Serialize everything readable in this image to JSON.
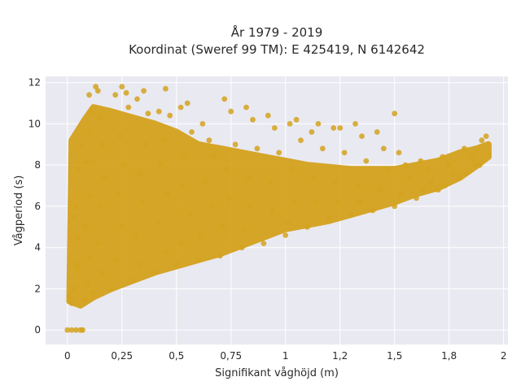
{
  "chart_data": {
    "type": "scatter",
    "title_line1": "År 1979 - 2019",
    "title_line2": "Koordinat (Sweref 99 TM): E 425419, N 6142642",
    "xlabel": "Signifikant våghöjd (m)",
    "ylabel": "Vågperiod (s)",
    "xlim": [
      -0.1,
      2.02
    ],
    "ylim": [
      -0.7,
      12.3
    ],
    "x_ticks": [
      {
        "value": 0,
        "label": "0"
      },
      {
        "value": 0.25,
        "label": "0,25"
      },
      {
        "value": 0.5,
        "label": "0,5"
      },
      {
        "value": 0.75,
        "label": "0,75"
      },
      {
        "value": 1,
        "label": "1"
      },
      {
        "value": 1.25,
        "label": "1,2"
      },
      {
        "value": 1.5,
        "label": "1,5"
      },
      {
        "value": 1.75,
        "label": "1,8"
      },
      {
        "value": 2,
        "label": "2"
      }
    ],
    "y_ticks": [
      {
        "value": 0,
        "label": "0"
      },
      {
        "value": 2,
        "label": "2"
      },
      {
        "value": 4,
        "label": "4"
      },
      {
        "value": 6,
        "label": "6"
      },
      {
        "value": 8,
        "label": "8"
      },
      {
        "value": 10,
        "label": "10"
      },
      {
        "value": 12,
        "label": "12"
      }
    ],
    "grid": true,
    "legend": "none",
    "colors": {
      "marker": "#d4a21e",
      "plot_background": "#e9e9f1",
      "grid": "#ffffff"
    },
    "series": [
      {
        "values_hint": "dense point cloud of significant wave height vs wave period",
        "points": [
          [
            0.0,
            0
          ],
          [
            0.02,
            0
          ],
          [
            0.04,
            0
          ],
          [
            0.06,
            0
          ],
          [
            0.07,
            0
          ],
          [
            0.01,
            1.6
          ],
          [
            0.02,
            1.3
          ],
          [
            0.03,
            2.0
          ],
          [
            0.04,
            3.2
          ],
          [
            0.05,
            4.5
          ],
          [
            0.04,
            6.0
          ],
          [
            0.05,
            7.8
          ],
          [
            0.06,
            9.0
          ],
          [
            0.05,
            3.0
          ],
          [
            0.03,
            5.5
          ],
          [
            0.08,
            1.5
          ],
          [
            0.09,
            2.2
          ],
          [
            0.1,
            3.5
          ],
          [
            0.08,
            5.0
          ],
          [
            0.1,
            6.5
          ],
          [
            0.09,
            8.2
          ],
          [
            0.1,
            9.6
          ],
          [
            0.11,
            10.6
          ],
          [
            0.1,
            11.4
          ],
          [
            0.12,
            1.8
          ],
          [
            0.13,
            11.8
          ],
          [
            0.14,
            11.6
          ],
          [
            0.15,
            10.3
          ],
          [
            0.16,
            9.0
          ],
          [
            0.17,
            7.4
          ],
          [
            0.15,
            6.0
          ],
          [
            0.14,
            4.2
          ],
          [
            0.16,
            2.8
          ],
          [
            0.2,
            2.0
          ],
          [
            0.22,
            11.4
          ],
          [
            0.25,
            11.8
          ],
          [
            0.27,
            11.5
          ],
          [
            0.28,
            10.8
          ],
          [
            0.24,
            9.4
          ],
          [
            0.26,
            8.0
          ],
          [
            0.23,
            6.6
          ],
          [
            0.25,
            5.0
          ],
          [
            0.22,
            3.4
          ],
          [
            0.3,
            2.4
          ],
          [
            0.32,
            11.2
          ],
          [
            0.35,
            11.6
          ],
          [
            0.37,
            10.5
          ],
          [
            0.36,
            9.0
          ],
          [
            0.33,
            7.6
          ],
          [
            0.34,
            6.2
          ],
          [
            0.31,
            4.6
          ],
          [
            0.33,
            3.2
          ],
          [
            0.4,
            2.8
          ],
          [
            0.42,
            10.6
          ],
          [
            0.45,
            11.7
          ],
          [
            0.47,
            10.4
          ],
          [
            0.44,
            9.2
          ],
          [
            0.43,
            8.0
          ],
          [
            0.46,
            6.6
          ],
          [
            0.42,
            5.2
          ],
          [
            0.45,
            3.8
          ],
          [
            0.5,
            3.2
          ],
          [
            0.52,
            10.8
          ],
          [
            0.55,
            11.0
          ],
          [
            0.57,
            9.6
          ],
          [
            0.54,
            8.4
          ],
          [
            0.53,
            7.0
          ],
          [
            0.56,
            5.6
          ],
          [
            0.52,
            4.2
          ],
          [
            0.6,
            3.4
          ],
          [
            0.62,
            10.0
          ],
          [
            0.65,
            9.2
          ],
          [
            0.67,
            8.4
          ],
          [
            0.63,
            7.2
          ],
          [
            0.66,
            6.0
          ],
          [
            0.61,
            4.6
          ],
          [
            0.7,
            3.6
          ],
          [
            0.72,
            11.2
          ],
          [
            0.75,
            10.6
          ],
          [
            0.77,
            9.0
          ],
          [
            0.73,
            7.8
          ],
          [
            0.74,
            6.4
          ],
          [
            0.71,
            5.0
          ],
          [
            0.8,
            4.0
          ],
          [
            0.82,
            10.8
          ],
          [
            0.85,
            10.2
          ],
          [
            0.87,
            8.8
          ],
          [
            0.83,
            7.4
          ],
          [
            0.84,
            6.0
          ],
          [
            0.81,
            4.8
          ],
          [
            0.9,
            4.2
          ],
          [
            0.92,
            10.4
          ],
          [
            0.95,
            9.8
          ],
          [
            0.97,
            8.6
          ],
          [
            0.93,
            7.2
          ],
          [
            0.94,
            5.8
          ],
          [
            1.0,
            4.6
          ],
          [
            1.02,
            10.0
          ],
          [
            1.05,
            10.2
          ],
          [
            1.07,
            9.2
          ],
          [
            1.03,
            7.8
          ],
          [
            1.04,
            6.2
          ],
          [
            1.01,
            5.2
          ],
          [
            1.1,
            5.0
          ],
          [
            1.12,
            9.6
          ],
          [
            1.15,
            10.0
          ],
          [
            1.17,
            8.8
          ],
          [
            1.13,
            7.4
          ],
          [
            1.14,
            6.2
          ],
          [
            1.2,
            5.4
          ],
          [
            1.22,
            9.8
          ],
          [
            1.25,
            9.8
          ],
          [
            1.27,
            8.6
          ],
          [
            1.23,
            7.2
          ],
          [
            1.24,
            6.2
          ],
          [
            1.3,
            5.6
          ],
          [
            1.32,
            10.0
          ],
          [
            1.35,
            9.4
          ],
          [
            1.37,
            8.2
          ],
          [
            1.33,
            7.0
          ],
          [
            1.34,
            6.2
          ],
          [
            1.4,
            5.8
          ],
          [
            1.42,
            9.6
          ],
          [
            1.45,
            8.8
          ],
          [
            1.47,
            7.8
          ],
          [
            1.43,
            6.8
          ],
          [
            1.5,
            6.0
          ],
          [
            1.5,
            10.5
          ],
          [
            1.52,
            8.6
          ],
          [
            1.55,
            8.0
          ],
          [
            1.57,
            7.4
          ],
          [
            1.53,
            6.6
          ],
          [
            1.6,
            6.4
          ],
          [
            1.62,
            8.2
          ],
          [
            1.65,
            7.8
          ],
          [
            1.67,
            7.2
          ],
          [
            1.63,
            6.8
          ],
          [
            1.7,
            6.8
          ],
          [
            1.72,
            8.4
          ],
          [
            1.75,
            8.0
          ],
          [
            1.77,
            7.6
          ],
          [
            1.73,
            7.0
          ],
          [
            1.8,
            7.4
          ],
          [
            1.82,
            8.8
          ],
          [
            1.85,
            8.4
          ],
          [
            1.87,
            8.0
          ],
          [
            1.83,
            7.6
          ],
          [
            1.88,
            8.8
          ],
          [
            1.9,
            9.2
          ],
          [
            1.92,
            9.4
          ],
          [
            1.93,
            8.6
          ],
          [
            1.89,
            8.0
          ]
        ]
      }
    ]
  }
}
